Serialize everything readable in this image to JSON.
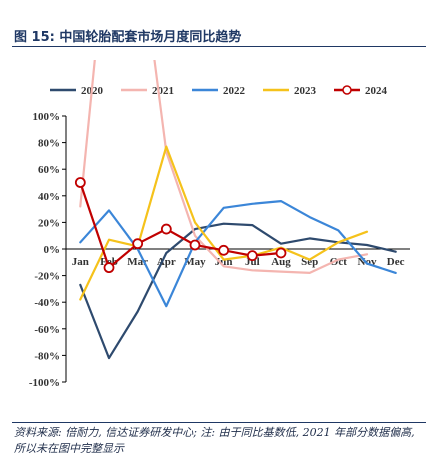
{
  "header": {
    "title": "图 15:  中国轮胎配套市场月度同比趋势"
  },
  "footer": {
    "source": "资料来源: 倍耐力, 信达证券研发中心; 注: 由于同比基数低, 2021 年部分数据偏高, 所以未在图中完整显示"
  },
  "chart_data": {
    "type": "line",
    "categories": [
      "Jan",
      "Feb",
      "Mar",
      "Apr",
      "May",
      "Jun",
      "Jul",
      "Aug",
      "Sep",
      "Oct",
      "Nov",
      "Dec"
    ],
    "y_ticks": [
      "100%",
      "80%",
      "60%",
      "40%",
      "20%",
      "0%",
      "-20%",
      "-40%",
      "-60%",
      "-80%",
      "-100%"
    ],
    "ylim": [
      -100,
      100
    ],
    "legend_position": "top",
    "series": [
      {
        "name": "2020",
        "color": "#2e4a6e",
        "marker": false,
        "values": [
          -27,
          -82,
          -47,
          -3,
          15,
          19,
          18,
          4,
          8,
          5,
          3,
          -2
        ]
      },
      {
        "name": "2021",
        "color": "#f4b5b0",
        "marker": false,
        "clipped": true,
        "values": [
          32,
          250,
          240,
          73,
          10,
          -13,
          -16,
          -17,
          -18,
          -8,
          -4,
          null
        ]
      },
      {
        "name": "2022",
        "color": "#3b86d8",
        "marker": false,
        "values": [
          5,
          29,
          0,
          -43,
          5,
          31,
          34,
          36,
          24,
          14,
          -11,
          -18
        ]
      },
      {
        "name": "2023",
        "color": "#f5c21b",
        "marker": false,
        "values": [
          -38,
          7,
          2,
          77,
          20,
          -8,
          -5,
          1,
          -8,
          5,
          13,
          null
        ]
      },
      {
        "name": "2024",
        "color": "#c00000",
        "marker": true,
        "values": [
          50,
          -14,
          4,
          15,
          3,
          -1,
          -5,
          -3,
          null,
          null,
          null,
          null
        ]
      }
    ]
  }
}
